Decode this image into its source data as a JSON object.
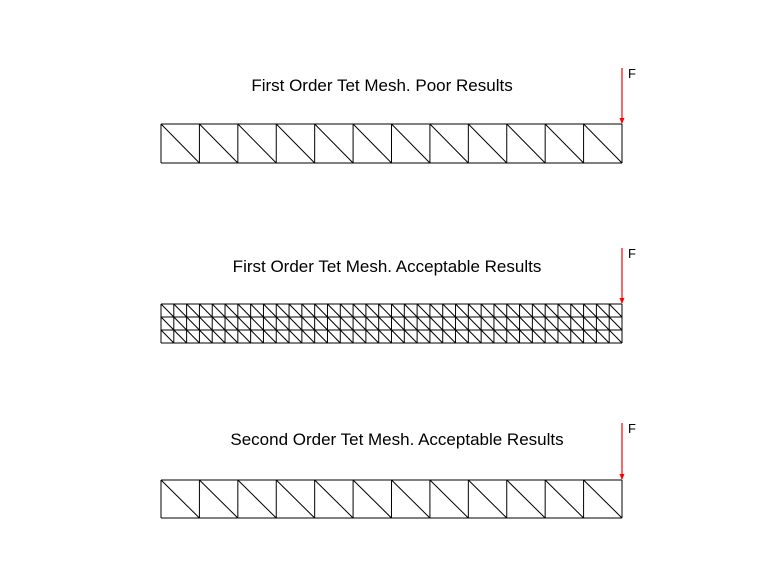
{
  "panels": [
    {
      "title": "First Order Tet Mesh. Poor Results",
      "force_label": "F",
      "columns": 12,
      "rows": 1
    },
    {
      "title": "First Order Tet Mesh. Acceptable Results",
      "force_label": "F",
      "columns": 36,
      "rows": 3
    },
    {
      "title": "Second Order Tet Mesh. Acceptable Results",
      "force_label": "F",
      "columns": 12,
      "rows": 1
    }
  ],
  "colors": {
    "mesh": "#000000",
    "force_arrow": "#ff0000"
  }
}
